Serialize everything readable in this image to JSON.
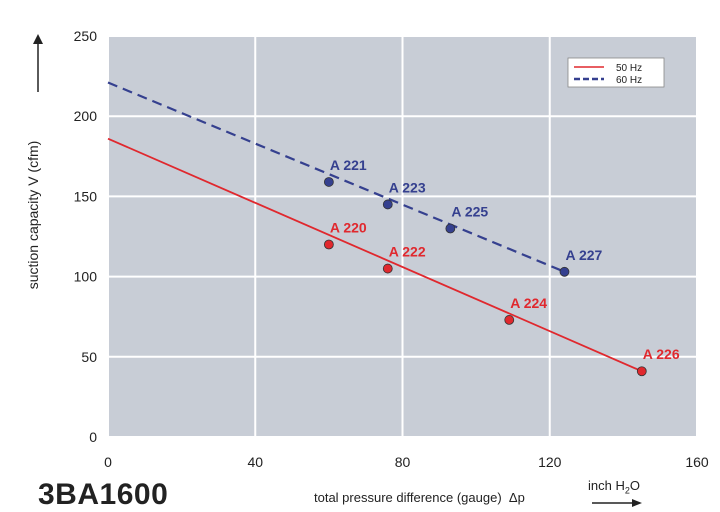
{
  "chart_data": {
    "type": "line",
    "model": "3BA1600",
    "xlabel": "total pressure difference (gauge)",
    "xlabel_symbol": "Δp",
    "xunit_main": "inch H",
    "xunit_sub": "2",
    "xunit_tail": "O",
    "ylabel": "suction capacity V (cfm)",
    "xlim": [
      0,
      160
    ],
    "ylim": [
      0,
      250
    ],
    "xticks": [
      0,
      40,
      80,
      120,
      160
    ],
    "yticks": [
      0,
      50,
      100,
      150,
      200,
      250
    ],
    "grid": true,
    "legend_position": "top-right",
    "series": [
      {
        "name": "50 Hz",
        "color": "#e0282e",
        "dash": "solid",
        "line": [
          [
            0,
            186
          ],
          [
            145,
            41
          ]
        ],
        "points": [
          {
            "x": 60,
            "y": 120,
            "label": "A 220"
          },
          {
            "x": 76,
            "y": 105,
            "label": "A 222"
          },
          {
            "x": 109,
            "y": 73,
            "label": "A 224"
          },
          {
            "x": 145,
            "y": 41,
            "label": "A 226"
          }
        ]
      },
      {
        "name": "60 Hz",
        "color": "#35408f",
        "dash": "dashed",
        "line": [
          [
            0,
            221
          ],
          [
            124,
            103
          ]
        ],
        "points": [
          {
            "x": 60,
            "y": 159,
            "label": "A 221"
          },
          {
            "x": 76,
            "y": 145,
            "label": "A 223"
          },
          {
            "x": 93,
            "y": 130,
            "label": "A 225"
          },
          {
            "x": 124,
            "y": 103,
            "label": "A 227"
          }
        ]
      }
    ]
  }
}
